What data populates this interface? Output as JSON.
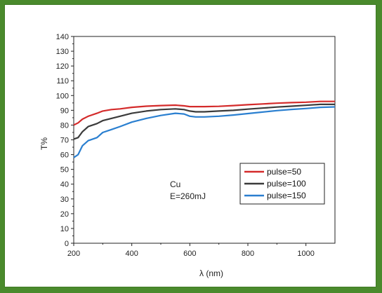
{
  "colors": {
    "frame_border": "#4a8a2c",
    "series": [
      "#d42b2b",
      "#3b3b3b",
      "#2a7fd0"
    ]
  },
  "chart_data": {
    "type": "line",
    "xlabel": "λ (nm)",
    "ylabel": "T%",
    "xlim": [
      200,
      1100
    ],
    "ylim": [
      0,
      140
    ],
    "x_ticks": [
      200,
      400,
      600,
      800,
      1000
    ],
    "y_ticks": [
      0,
      10,
      20,
      30,
      40,
      50,
      60,
      70,
      80,
      90,
      100,
      110,
      120,
      130,
      140
    ],
    "grid": false,
    "legend_position": "center-right",
    "annotations": [
      "Cu",
      "E=260mJ"
    ],
    "series": [
      {
        "name": "pulse=50",
        "color": "#d42b2b",
        "x": [
          200,
          215,
          230,
          250,
          280,
          300,
          330,
          360,
          400,
          450,
          500,
          550,
          580,
          600,
          620,
          650,
          700,
          750,
          800,
          850,
          900,
          950,
          1000,
          1050,
          1100
        ],
        "y": [
          80,
          81.5,
          84,
          86,
          88,
          89.5,
          90.5,
          91,
          92,
          92.8,
          93.2,
          93.5,
          93,
          92.5,
          92.5,
          92.5,
          92.7,
          93.2,
          93.8,
          94.3,
          94.8,
          95.2,
          95.5,
          96,
          96
        ]
      },
      {
        "name": "pulse=100",
        "color": "#3b3b3b",
        "x": [
          200,
          215,
          230,
          250,
          280,
          300,
          330,
          360,
          400,
          450,
          500,
          550,
          580,
          600,
          620,
          650,
          700,
          750,
          800,
          850,
          900,
          950,
          1000,
          1050,
          1100
        ],
        "y": [
          70.5,
          71.5,
          75.5,
          79,
          81,
          83,
          84.5,
          86,
          88,
          89.5,
          90.5,
          91,
          90.5,
          89.5,
          89,
          89,
          89.5,
          90,
          90.8,
          91.5,
          92.2,
          92.8,
          93.4,
          94,
          94
        ]
      },
      {
        "name": "pulse=150",
        "color": "#2a7fd0",
        "x": [
          200,
          215,
          230,
          250,
          280,
          300,
          330,
          360,
          400,
          450,
          500,
          550,
          580,
          600,
          620,
          650,
          700,
          750,
          800,
          850,
          900,
          950,
          1000,
          1050,
          1100
        ],
        "y": [
          58,
          60,
          66,
          69.5,
          71.5,
          75,
          77,
          79,
          82,
          84.5,
          86.5,
          88,
          87.5,
          86,
          85.5,
          85.5,
          86,
          86.8,
          87.8,
          88.8,
          89.8,
          90.6,
          91.2,
          92,
          92.3
        ]
      }
    ]
  }
}
